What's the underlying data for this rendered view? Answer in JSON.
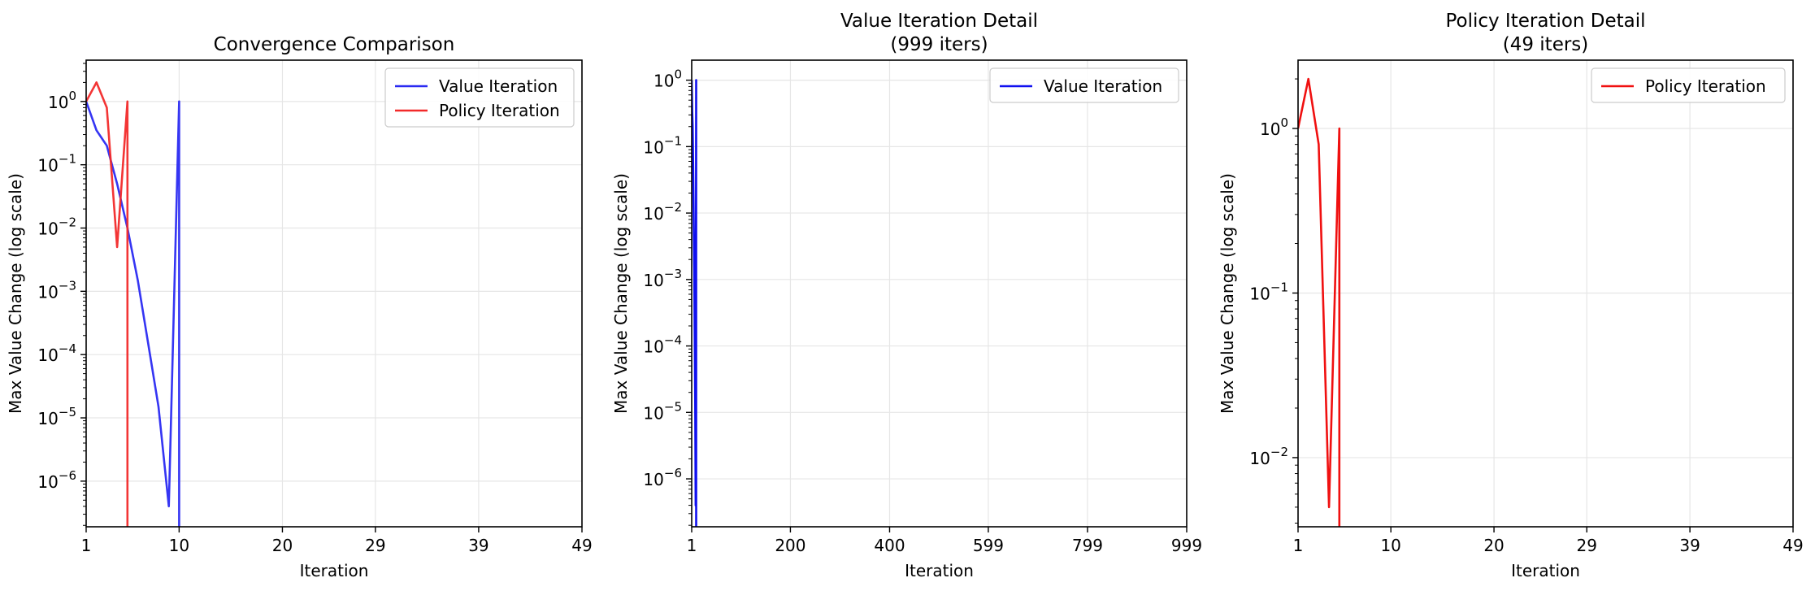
{
  "chart_data": [
    {
      "type": "line",
      "title": [
        "Convergence Comparison"
      ],
      "xlabel": "Iteration",
      "ylabel": "Max Value Change (log scale)",
      "y_scale": "log",
      "xlim": [
        1,
        49
      ],
      "ylim": [
        1.9e-07,
        4.5
      ],
      "xticks": [
        1,
        10,
        20,
        29,
        39,
        49
      ],
      "xtick_labels": [
        "1",
        "10",
        "20",
        "29",
        "39",
        "49"
      ],
      "yticks": [
        1e-06,
        1e-05,
        0.0001,
        0.001,
        0.01,
        0.1,
        1
      ],
      "ytick_labels": [
        {
          "base": "10",
          "exp": "−6"
        },
        {
          "base": "10",
          "exp": "−5"
        },
        {
          "base": "10",
          "exp": "−4"
        },
        {
          "base": "10",
          "exp": "−3"
        },
        {
          "base": "10",
          "exp": "−2"
        },
        {
          "base": "10",
          "exp": "−1"
        },
        {
          "base": "10",
          "exp": "0"
        }
      ],
      "grid": true,
      "legend": "top-right",
      "series": [
        {
          "name": "Value Iteration",
          "color": "#2a2af2",
          "x": [
            1,
            2,
            3,
            4,
            5,
            6,
            7,
            8,
            9,
            10,
            10
          ],
          "y": [
            1.0,
            0.35,
            0.2,
            0.05,
            0.01,
            0.0015,
            0.00015,
            1.5e-05,
            4e-07,
            1.0,
            1.9e-07
          ]
        },
        {
          "name": "Policy Iteration",
          "color": "#f22a2a",
          "x": [
            1,
            2,
            3,
            4,
            5,
            5
          ],
          "y": [
            1.0,
            2.0,
            0.8,
            0.005,
            1.0,
            1.9e-07
          ]
        }
      ]
    },
    {
      "type": "line",
      "title": [
        "Value Iteration Detail",
        "(999 iters)"
      ],
      "xlabel": "Iteration",
      "ylabel": "Max Value Change (log scale)",
      "y_scale": "log",
      "xlim": [
        1,
        999
      ],
      "ylim": [
        1.9e-07,
        2.0
      ],
      "xticks": [
        1,
        200,
        400,
        599,
        799,
        999
      ],
      "xtick_labels": [
        "1",
        "200",
        "400",
        "599",
        "799",
        "999"
      ],
      "yticks": [
        1e-06,
        1e-05,
        0.0001,
        0.001,
        0.01,
        0.1,
        1
      ],
      "ytick_labels": [
        {
          "base": "10",
          "exp": "−6"
        },
        {
          "base": "10",
          "exp": "−5"
        },
        {
          "base": "10",
          "exp": "−4"
        },
        {
          "base": "10",
          "exp": "−3"
        },
        {
          "base": "10",
          "exp": "−2"
        },
        {
          "base": "10",
          "exp": "−1"
        },
        {
          "base": "10",
          "exp": "0"
        }
      ],
      "grid": true,
      "legend": "top-right",
      "series": [
        {
          "name": "Value Iteration",
          "color": "#1010f0",
          "x": [
            1,
            2,
            3,
            4,
            5,
            6,
            7,
            8,
            9,
            10,
            10
          ],
          "y": [
            1.0,
            0.35,
            0.2,
            0.05,
            0.01,
            0.0015,
            0.00015,
            1.5e-05,
            4e-07,
            1.0,
            1.9e-07
          ]
        }
      ]
    },
    {
      "type": "line",
      "title": [
        "Policy Iteration Detail",
        "(49 iters)"
      ],
      "xlabel": "Iteration",
      "ylabel": "Max Value Change (log scale)",
      "y_scale": "log",
      "xlim": [
        1,
        49
      ],
      "ylim": [
        0.0038,
        2.6
      ],
      "xticks": [
        1,
        10,
        20,
        29,
        39,
        49
      ],
      "xtick_labels": [
        "1",
        "10",
        "20",
        "29",
        "39",
        "49"
      ],
      "yticks": [
        0.01,
        0.1,
        1
      ],
      "ytick_labels": [
        {
          "base": "10",
          "exp": "−2"
        },
        {
          "base": "10",
          "exp": "−1"
        },
        {
          "base": "10",
          "exp": "0"
        }
      ],
      "grid": true,
      "legend": "top-right",
      "series": [
        {
          "name": "Policy Iteration",
          "color": "#f01010",
          "x": [
            1,
            2,
            3,
            4,
            5,
            5
          ],
          "y": [
            1.0,
            2.0,
            0.8,
            0.005,
            1.0,
            0.0038
          ]
        }
      ]
    }
  ]
}
